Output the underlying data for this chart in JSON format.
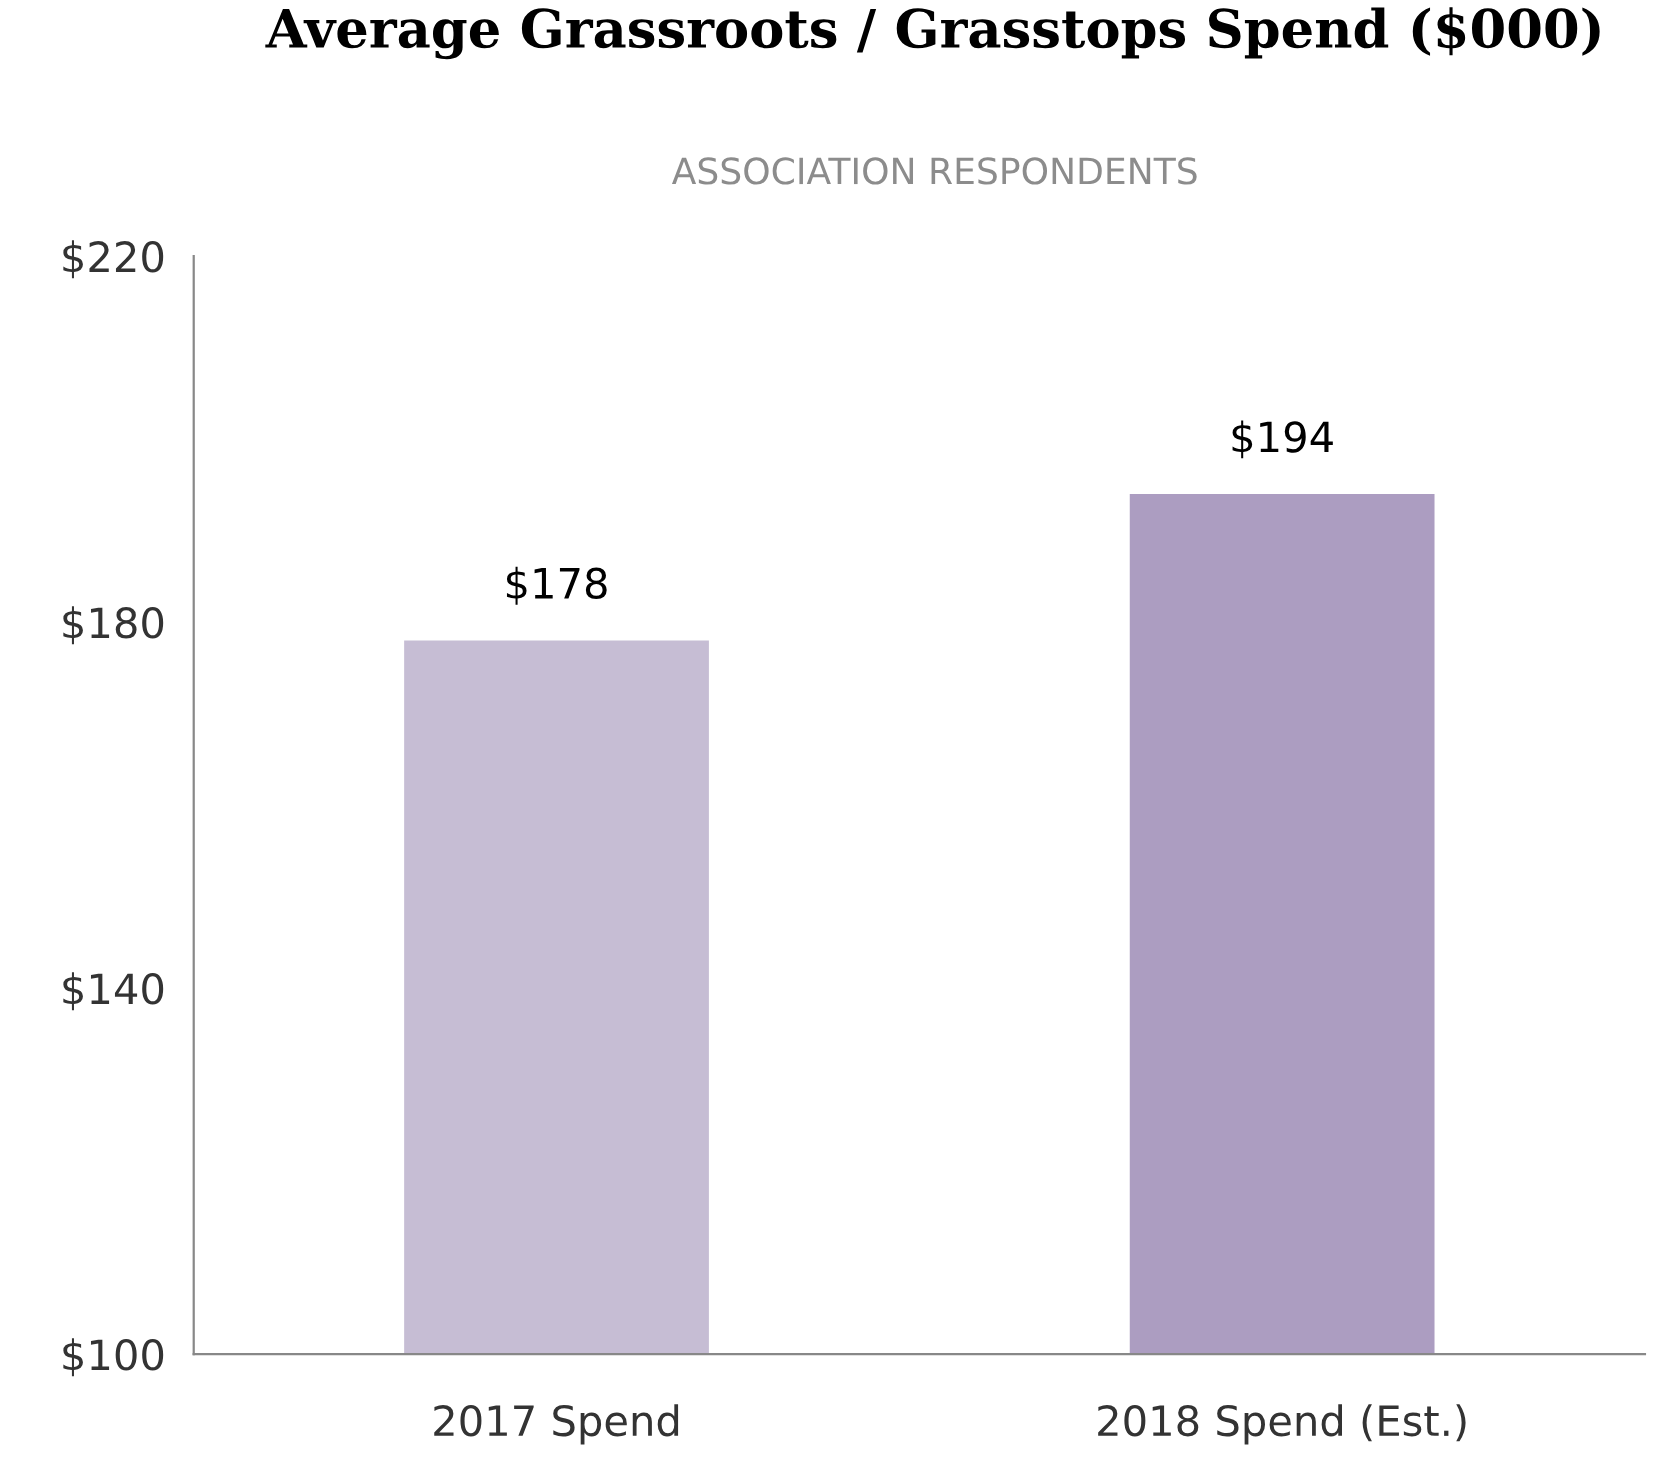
{
  "chart_data": {
    "type": "bar",
    "title": "Average Grassroots / Grasstops Spend ($000)",
    "subtitle": "ASSOCIATION RESPONDENTS",
    "categories": [
      "2017 Spend",
      "2018 Spend (Est.)"
    ],
    "values": [
      178,
      194
    ],
    "colors": [
      "#c6bdd4",
      "#ac9dc1"
    ],
    "value_labels": [
      "$178",
      "$194"
    ],
    "ylim": [
      100,
      220
    ],
    "yticks": [
      {
        "value": 100,
        "label": "$100"
      },
      {
        "value": 140,
        "label": "$140"
      },
      {
        "value": 180,
        "label": "$180"
      },
      {
        "value": 220,
        "label": "$220"
      }
    ],
    "grid": false,
    "legend": false
  }
}
